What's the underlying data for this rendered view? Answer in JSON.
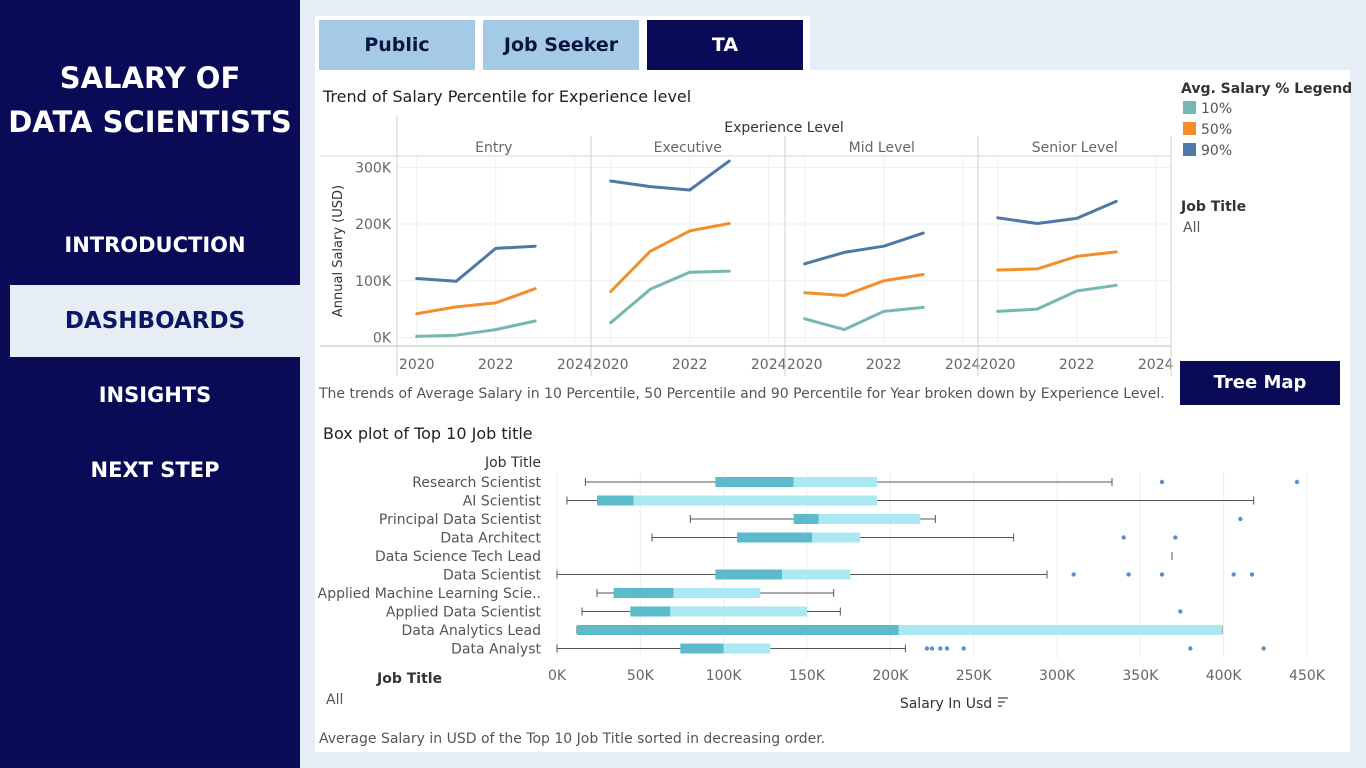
{
  "sidebar": {
    "title_line1": "SALARY OF",
    "title_line2": "DATA SCIENTISTS",
    "nav": [
      "INTRODUCTION",
      "DASHBOARDS",
      "INSIGHTS",
      "NEXT STEP"
    ],
    "active": "DASHBOARDS"
  },
  "tabs": [
    "Public",
    "Job Seeker",
    "TA"
  ],
  "active_tab": "TA",
  "colors": {
    "navy": "#090b57",
    "p10": "#76b7b2",
    "p50": "#f28e2b",
    "p90": "#4e79a7",
    "box_dark": "#5bbbcd",
    "box_light": "#aae8f2",
    "outlier": "#5b8fc8"
  },
  "trend": {
    "title": "Trend of Salary Percentile for Experience level",
    "caption": "The trends of Average Salary in 10 Percentile, 50 Percentile and 90 Percentile for Year broken down by Experience Level.",
    "legend_title": "Avg. Salary % Legend",
    "legend": [
      "10%",
      "50%",
      "90%"
    ],
    "filter_label": "Job Title",
    "filter_value": "All",
    "button": "Tree Map"
  },
  "box": {
    "title": "Box plot of Top 10 Job title",
    "caption": "Average Salary in USD of the Top 10 Job Title sorted in decreasing order.",
    "filter_label": "Job Title",
    "filter_value": "All"
  },
  "chart_data": [
    {
      "type": "line",
      "title": "Trend of Salary Percentile for Experience level",
      "column_header": "Experience Level",
      "ylabel": "Annual Salary (USD)",
      "ylim": [
        -15000,
        320000
      ],
      "yticks": [
        0,
        100000,
        200000,
        300000
      ],
      "ytick_labels": [
        "0K",
        "100K",
        "200K",
        "300K"
      ],
      "xlim": [
        2019.5,
        2024.4
      ],
      "xticks": [
        2020,
        2022,
        2024
      ],
      "grid": true,
      "legend_position": "top-right",
      "panels": [
        {
          "name": "Entry",
          "x": [
            2020,
            2021,
            2022,
            2023
          ],
          "series": [
            {
              "name": "10%",
              "values": [
                2000,
                4000,
                14000,
                29000
              ]
            },
            {
              "name": "50%",
              "values": [
                42000,
                54000,
                61000,
                86000
              ]
            },
            {
              "name": "90%",
              "values": [
                104000,
                99000,
                157000,
                161000
              ]
            }
          ]
        },
        {
          "name": "Executive",
          "x": [
            2020,
            2021,
            2022,
            2023
          ],
          "series": [
            {
              "name": "10%",
              "values": [
                26000,
                85000,
                115000,
                117000
              ]
            },
            {
              "name": "50%",
              "values": [
                81000,
                152000,
                188000,
                201000
              ]
            },
            {
              "name": "90%",
              "values": [
                276000,
                266000,
                260000,
                311000
              ]
            }
          ]
        },
        {
          "name": "Mid Level",
          "x": [
            2020,
            2021,
            2022,
            2023
          ],
          "series": [
            {
              "name": "10%",
              "values": [
                33000,
                14000,
                46000,
                53000
              ]
            },
            {
              "name": "50%",
              "values": [
                79000,
                74000,
                100000,
                111000
              ]
            },
            {
              "name": "90%",
              "values": [
                130000,
                150000,
                161000,
                184000
              ]
            }
          ]
        },
        {
          "name": "Senior Level",
          "x": [
            2020,
            2021,
            2022,
            2023
          ],
          "series": [
            {
              "name": "10%",
              "values": [
                46000,
                50000,
                82000,
                92000
              ]
            },
            {
              "name": "50%",
              "values": [
                119000,
                121000,
                143000,
                151000
              ]
            },
            {
              "name": "90%",
              "values": [
                211000,
                201000,
                210000,
                240000
              ]
            }
          ]
        }
      ]
    },
    {
      "type": "box",
      "title": "Box plot of Top 10 Job title",
      "ylabel": "Job Title",
      "xlabel": "Salary In Usd",
      "xlim": [
        -2000,
        455000
      ],
      "xticks": [
        0,
        50000,
        100000,
        150000,
        200000,
        250000,
        300000,
        350000,
        400000,
        450000
      ],
      "xtick_labels": [
        "0K",
        "50K",
        "100K",
        "150K",
        "200K",
        "250K",
        "300K",
        "350K",
        "400K",
        "450K"
      ],
      "rows": [
        {
          "label": "Research Scientist",
          "whisker_low": 17000,
          "q1": 95000,
          "median": 142000,
          "q3": 192000,
          "whisker_high": 333000,
          "outliers": [
            363000,
            444000
          ]
        },
        {
          "label": "AI Scientist",
          "whisker_low": 6000,
          "q1": 24000,
          "median": 46000,
          "q3": 192000,
          "whisker_high": 418000,
          "outliers": []
        },
        {
          "label": "Principal Data Scientist",
          "whisker_low": 80000,
          "q1": 142000,
          "median": 157000,
          "q3": 218000,
          "whisker_high": 227000,
          "outliers": [
            410000
          ]
        },
        {
          "label": "Data Architect",
          "whisker_low": 57000,
          "q1": 108000,
          "median": 153000,
          "q3": 182000,
          "whisker_high": 274000,
          "outliers": [
            340000,
            371000
          ]
        },
        {
          "label": "Data Science Tech Lead",
          "whisker_low": 369000,
          "q1": 369000,
          "median": 369000,
          "q3": 369000,
          "whisker_high": 369000,
          "outliers": []
        },
        {
          "label": "Data Scientist",
          "whisker_low": 0,
          "q1": 95000,
          "median": 135000,
          "q3": 176000,
          "whisker_high": 294000,
          "outliers": [
            310000,
            343000,
            363000,
            406000,
            417000
          ]
        },
        {
          "label": "Applied Machine Learning Scie..",
          "whisker_low": 24000,
          "q1": 34000,
          "median": 70000,
          "q3": 122000,
          "whisker_high": 166000,
          "outliers": []
        },
        {
          "label": "Applied Data Scientist",
          "whisker_low": 15000,
          "q1": 44000,
          "median": 68000,
          "q3": 150000,
          "whisker_high": 170000,
          "outliers": [
            374000
          ]
        },
        {
          "label": "Data Analytics Lead",
          "whisker_low": 12000,
          "q1": 12000,
          "median": 205000,
          "q3": 399000,
          "whisker_high": 399000,
          "outliers": []
        },
        {
          "label": "Data Analyst",
          "whisker_low": 0,
          "q1": 74000,
          "median": 100000,
          "q3": 128000,
          "whisker_high": 209000,
          "outliers": [
            222000,
            225000,
            230000,
            234000,
            244000,
            380000,
            424000
          ]
        }
      ]
    }
  ]
}
